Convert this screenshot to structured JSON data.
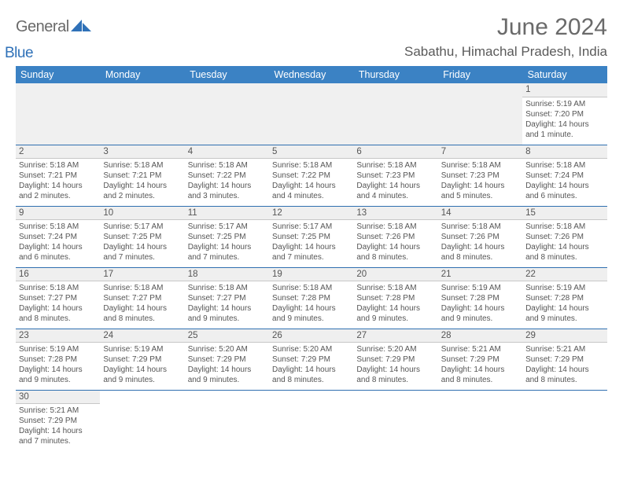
{
  "brand": {
    "text1": "General",
    "text2": "Blue"
  },
  "title": "June 2024",
  "location": "Sabathu, Himachal Pradesh, India",
  "colors": {
    "header_bg": "#3b82c4",
    "header_text": "#ffffff",
    "rule": "#2f6fb0",
    "daynum_bg": "#efefef",
    "text": "#555555"
  },
  "weekdays": [
    "Sunday",
    "Monday",
    "Tuesday",
    "Wednesday",
    "Thursday",
    "Friday",
    "Saturday"
  ],
  "leading_blanks": 6,
  "days": [
    {
      "n": 1,
      "sr": "5:19 AM",
      "ss": "7:20 PM",
      "dl": "14 hours and 1 minute."
    },
    {
      "n": 2,
      "sr": "5:18 AM",
      "ss": "7:21 PM",
      "dl": "14 hours and 2 minutes."
    },
    {
      "n": 3,
      "sr": "5:18 AM",
      "ss": "7:21 PM",
      "dl": "14 hours and 2 minutes."
    },
    {
      "n": 4,
      "sr": "5:18 AM",
      "ss": "7:22 PM",
      "dl": "14 hours and 3 minutes."
    },
    {
      "n": 5,
      "sr": "5:18 AM",
      "ss": "7:22 PM",
      "dl": "14 hours and 4 minutes."
    },
    {
      "n": 6,
      "sr": "5:18 AM",
      "ss": "7:23 PM",
      "dl": "14 hours and 4 minutes."
    },
    {
      "n": 7,
      "sr": "5:18 AM",
      "ss": "7:23 PM",
      "dl": "14 hours and 5 minutes."
    },
    {
      "n": 8,
      "sr": "5:18 AM",
      "ss": "7:24 PM",
      "dl": "14 hours and 6 minutes."
    },
    {
      "n": 9,
      "sr": "5:18 AM",
      "ss": "7:24 PM",
      "dl": "14 hours and 6 minutes."
    },
    {
      "n": 10,
      "sr": "5:17 AM",
      "ss": "7:25 PM",
      "dl": "14 hours and 7 minutes."
    },
    {
      "n": 11,
      "sr": "5:17 AM",
      "ss": "7:25 PM",
      "dl": "14 hours and 7 minutes."
    },
    {
      "n": 12,
      "sr": "5:17 AM",
      "ss": "7:25 PM",
      "dl": "14 hours and 7 minutes."
    },
    {
      "n": 13,
      "sr": "5:18 AM",
      "ss": "7:26 PM",
      "dl": "14 hours and 8 minutes."
    },
    {
      "n": 14,
      "sr": "5:18 AM",
      "ss": "7:26 PM",
      "dl": "14 hours and 8 minutes."
    },
    {
      "n": 15,
      "sr": "5:18 AM",
      "ss": "7:26 PM",
      "dl": "14 hours and 8 minutes."
    },
    {
      "n": 16,
      "sr": "5:18 AM",
      "ss": "7:27 PM",
      "dl": "14 hours and 8 minutes."
    },
    {
      "n": 17,
      "sr": "5:18 AM",
      "ss": "7:27 PM",
      "dl": "14 hours and 8 minutes."
    },
    {
      "n": 18,
      "sr": "5:18 AM",
      "ss": "7:27 PM",
      "dl": "14 hours and 9 minutes."
    },
    {
      "n": 19,
      "sr": "5:18 AM",
      "ss": "7:28 PM",
      "dl": "14 hours and 9 minutes."
    },
    {
      "n": 20,
      "sr": "5:18 AM",
      "ss": "7:28 PM",
      "dl": "14 hours and 9 minutes."
    },
    {
      "n": 21,
      "sr": "5:19 AM",
      "ss": "7:28 PM",
      "dl": "14 hours and 9 minutes."
    },
    {
      "n": 22,
      "sr": "5:19 AM",
      "ss": "7:28 PM",
      "dl": "14 hours and 9 minutes."
    },
    {
      "n": 23,
      "sr": "5:19 AM",
      "ss": "7:28 PM",
      "dl": "14 hours and 9 minutes."
    },
    {
      "n": 24,
      "sr": "5:19 AM",
      "ss": "7:29 PM",
      "dl": "14 hours and 9 minutes."
    },
    {
      "n": 25,
      "sr": "5:20 AM",
      "ss": "7:29 PM",
      "dl": "14 hours and 9 minutes."
    },
    {
      "n": 26,
      "sr": "5:20 AM",
      "ss": "7:29 PM",
      "dl": "14 hours and 8 minutes."
    },
    {
      "n": 27,
      "sr": "5:20 AM",
      "ss": "7:29 PM",
      "dl": "14 hours and 8 minutes."
    },
    {
      "n": 28,
      "sr": "5:21 AM",
      "ss": "7:29 PM",
      "dl": "14 hours and 8 minutes."
    },
    {
      "n": 29,
      "sr": "5:21 AM",
      "ss": "7:29 PM",
      "dl": "14 hours and 8 minutes."
    },
    {
      "n": 30,
      "sr": "5:21 AM",
      "ss": "7:29 PM",
      "dl": "14 hours and 7 minutes."
    }
  ],
  "labels": {
    "sunrise": "Sunrise: ",
    "sunset": "Sunset: ",
    "daylight": "Daylight: "
  }
}
